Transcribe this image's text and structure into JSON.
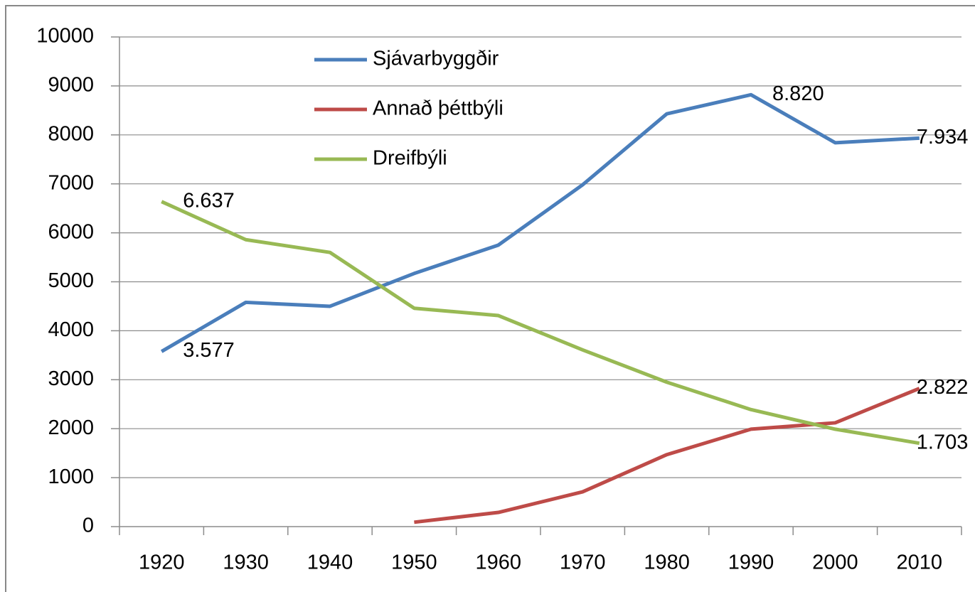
{
  "chart_data": {
    "type": "line",
    "categories": [
      "1920",
      "1930",
      "1940",
      "1950",
      "1960",
      "1970",
      "1980",
      "1990",
      "2000",
      "2010"
    ],
    "series": [
      {
        "name": "Sjávarbyggðir",
        "color": "#4a7ebb",
        "values": [
          3577,
          4580,
          4500,
          5170,
          5750,
          6980,
          8430,
          8820,
          7840,
          7934
        ],
        "value_labels": [
          "3.577",
          null,
          null,
          null,
          null,
          null,
          null,
          "8.820",
          null,
          "7.934"
        ]
      },
      {
        "name": "Annað þéttbýli",
        "color": "#be4b48",
        "values": [
          null,
          null,
          null,
          90,
          290,
          710,
          1470,
          1990,
          2120,
          2822
        ],
        "value_labels": [
          null,
          null,
          null,
          null,
          null,
          null,
          null,
          null,
          null,
          "2.822"
        ]
      },
      {
        "name": "Dreifbýli",
        "color": "#98b954",
        "values": [
          6637,
          5860,
          5600,
          4460,
          4310,
          3610,
          2950,
          2390,
          1990,
          1703
        ],
        "value_labels": [
          "6.637",
          null,
          null,
          null,
          null,
          null,
          null,
          null,
          null,
          "1.703"
        ]
      }
    ],
    "ylim": [
      0,
      10000
    ],
    "yticks": [
      0,
      1000,
      2000,
      3000,
      4000,
      5000,
      6000,
      7000,
      8000,
      9000,
      10000
    ],
    "grid": true,
    "legend": "top"
  }
}
